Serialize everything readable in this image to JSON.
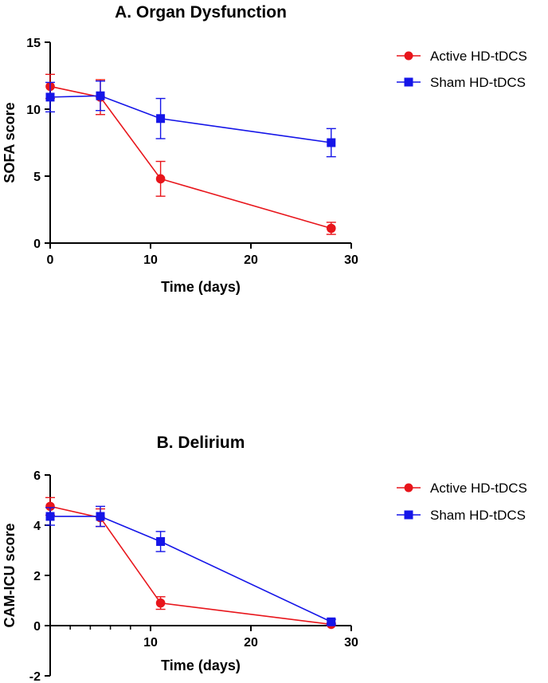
{
  "chart_data": [
    {
      "type": "line",
      "title": "A. Organ Dysfunction",
      "xlabel": "Time (days)",
      "ylabel": "SOFA score",
      "xlim": [
        0,
        30
      ],
      "ylim": [
        0,
        15
      ],
      "xticks": [
        0,
        10,
        20,
        30
      ],
      "yticks": [
        0,
        5,
        10,
        15
      ],
      "minor_xticks": [],
      "legend_position": "top-right",
      "series": [
        {
          "name": "Active HD-tDCS",
          "color": "#e8151b",
          "marker": "circle",
          "x": [
            0,
            5,
            11,
            28
          ],
          "y": [
            11.7,
            10.9,
            4.8,
            1.1
          ],
          "err": [
            0.9,
            1.3,
            1.3,
            0.45
          ]
        },
        {
          "name": "Sham HD-tDCS",
          "color": "#1515e8",
          "marker": "square",
          "x": [
            0,
            5,
            11,
            28
          ],
          "y": [
            10.9,
            11.0,
            9.3,
            7.5
          ],
          "err": [
            1.1,
            1.1,
            1.5,
            1.05
          ]
        }
      ]
    },
    {
      "type": "line",
      "title": "B. Delirium",
      "xlabel": "Time (days)",
      "ylabel": "CAM-ICU score",
      "xlim": [
        0,
        30
      ],
      "ylim": [
        -2,
        6
      ],
      "xticks": [
        10,
        20,
        30
      ],
      "yticks": [
        -2,
        0,
        2,
        4,
        6
      ],
      "minor_xticks": [
        2,
        4,
        6,
        8
      ],
      "legend_position": "top-right",
      "series": [
        {
          "name": "Active HD-tDCS",
          "color": "#e8151b",
          "marker": "circle",
          "x": [
            0,
            5,
            11,
            28
          ],
          "y": [
            4.75,
            4.3,
            0.9,
            0.05
          ],
          "err": [
            0.35,
            0.35,
            0.25,
            0.05
          ]
        },
        {
          "name": "Sham HD-tDCS",
          "color": "#1515e8",
          "marker": "square",
          "x": [
            0,
            5,
            11,
            28
          ],
          "y": [
            4.35,
            4.35,
            3.35,
            0.15
          ],
          "err": [
            0.35,
            0.4,
            0.4,
            0.1
          ]
        }
      ]
    }
  ]
}
